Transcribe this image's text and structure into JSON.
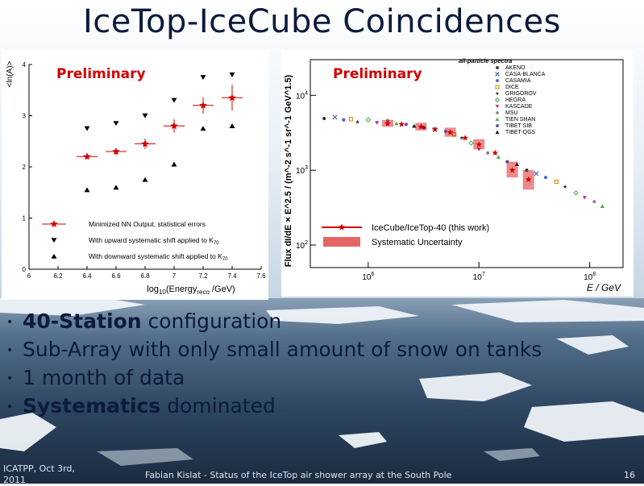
{
  "slide": {
    "title": "IceTop-IceCube Coincidences",
    "bullets": [
      {
        "bold": "40-Station",
        "text": " configuration"
      },
      {
        "bold": "",
        "text": "Sub-Array with only small amount of snow on tanks"
      },
      {
        "bold": "",
        "text": "1 month of data"
      },
      {
        "bold": "Systematics",
        "text": " dominated"
      }
    ],
    "footer": {
      "left": "ICATPP, Oct 3rd, 2011",
      "center": "Fabian Kislat - Status of the IceTop air shower array at the South Pole",
      "page": "16"
    },
    "colors": {
      "title": "#0c1a3c",
      "preliminary": "#d10000",
      "icecube": "#d10000"
    }
  },
  "chart_data": [
    {
      "type": "scatter",
      "preliminary_label": "Preliminary",
      "ylabel": "<ln(A)>",
      "xlabel_parts": [
        "log",
        "10",
        "(Energy",
        "reco",
        " /GeV)"
      ],
      "xlim": [
        6,
        7.6
      ],
      "ylim": [
        0,
        4
      ],
      "xticks": [
        "6",
        "6.2",
        "6.4",
        "6.6",
        "6.8",
        "7",
        "7.2",
        "7.4",
        "7.6"
      ],
      "yticks": [
        "0",
        "1",
        "2",
        "3",
        "4"
      ],
      "series": [
        {
          "name": "Minimized NN Output, statistical errors",
          "marker": "star",
          "color": "#d10000",
          "x": [
            6.4,
            6.6,
            6.8,
            7.0,
            7.2,
            7.4
          ],
          "y": [
            2.2,
            2.3,
            2.45,
            2.8,
            3.2,
            3.35
          ],
          "yerr": [
            0.05,
            0.07,
            0.1,
            0.13,
            0.16,
            0.25
          ]
        },
        {
          "name": "With upward systematic shift applied to K",
          "name_sub": "70",
          "marker": "triangle-down",
          "color": "#000000",
          "x": [
            6.4,
            6.6,
            6.8,
            7.0,
            7.2,
            7.4
          ],
          "y": [
            2.75,
            2.85,
            3.0,
            3.3,
            3.75,
            3.8
          ]
        },
        {
          "name": "With downward systematic shift applied to K",
          "name_sub": "70",
          "marker": "triangle-up",
          "color": "#000000",
          "x": [
            6.4,
            6.6,
            6.8,
            7.0,
            7.2,
            7.4
          ],
          "y": [
            1.55,
            1.6,
            1.75,
            2.05,
            2.75,
            2.8
          ]
        }
      ]
    },
    {
      "type": "scatter",
      "preliminary_label": "Preliminary",
      "legend_title": "all-particle spectra",
      "ylabel": "Flux dI/dE × E^2.5 / (m^-2 s^-1 sr^-1 GeV^1.5)",
      "xlabel": "E / GeV",
      "xscale": "log",
      "yscale": "log",
      "xlim": [
        300000,
        200000000
      ],
      "ylim": [
        50,
        30000
      ],
      "xticks": [
        {
          "value": 1000000,
          "base": "10",
          "exp": "6"
        },
        {
          "value": 10000000,
          "base": "10",
          "exp": "7"
        },
        {
          "value": 100000000,
          "base": "10",
          "exp": "8"
        }
      ],
      "yticks": [
        {
          "value": 100,
          "base": "10",
          "exp": "2"
        },
        {
          "value": 1000,
          "base": "10",
          "exp": "3"
        },
        {
          "value": 10000,
          "base": "10",
          "exp": "4"
        }
      ],
      "experiments": [
        {
          "name": "AKENO",
          "marker": "circle",
          "color": "#333333"
        },
        {
          "name": "CASA-BLANCA",
          "marker": "cross",
          "color": "#4466cc"
        },
        {
          "name": "CASAMIA",
          "marker": "circle",
          "color": "#4466cc"
        },
        {
          "name": "DICE",
          "marker": "square",
          "color": "#cc8800"
        },
        {
          "name": "GRIGOROV",
          "marker": "star",
          "color": "#333333"
        },
        {
          "name": "HEGRA",
          "marker": "diamond",
          "color": "#44aa44"
        },
        {
          "name": "KASCADE",
          "marker": "triangle-down",
          "color": "#aa3399"
        },
        {
          "name": "MSU",
          "marker": "circle",
          "color": "#888888"
        },
        {
          "name": "TIEN SHAN",
          "marker": "triangle-up",
          "color": "#44aa44"
        },
        {
          "name": "TIBET SIB",
          "marker": "circle",
          "color": "#6644aa"
        },
        {
          "name": "TIBET-QGS",
          "marker": "triangle-up",
          "color": "#000000"
        }
      ],
      "series": [
        {
          "name": "IceCube/IceTop-40 (this work)",
          "marker": "star",
          "color": "#d10000",
          "x": [
            1500000,
            2000000,
            3000000,
            4000000,
            5500000,
            7500000,
            10000000,
            14000000,
            20000000,
            28000000
          ],
          "y": [
            4200,
            4100,
            3800,
            3500,
            3200,
            2700,
            2200,
            1700,
            1000,
            750
          ]
        },
        {
          "name": "Systematic Uncertainty",
          "marker": "band",
          "color": "#d10000",
          "x": [
            1500000,
            3000000,
            5500000,
            10000000,
            20000000,
            28000000
          ],
          "y_low": [
            3800,
            3400,
            2800,
            1900,
            800,
            550
          ],
          "y_high": [
            4700,
            4300,
            3700,
            2600,
            1300,
            1000
          ]
        }
      ],
      "other_points": {
        "x": [
          400000,
          500000,
          600000,
          700000,
          800000,
          1000000,
          1200000,
          1500000,
          1800000,
          2200000,
          2600000,
          3200000,
          4000000,
          5000000,
          6000000,
          7000000,
          8500000,
          10000000,
          12000000,
          15000000,
          18000000,
          22000000,
          27000000,
          33000000,
          40000000,
          50000000,
          60000000,
          75000000,
          90000000,
          110000000,
          130000000
        ],
        "y": [
          4900,
          5100,
          4700,
          4800,
          4400,
          4700,
          4300,
          4600,
          4200,
          4100,
          3900,
          3700,
          3500,
          3300,
          3000,
          2700,
          2300,
          1900,
          1700,
          1500,
          1300,
          1200,
          1000,
          900,
          800,
          700,
          600,
          500,
          430,
          380,
          330
        ]
      }
    }
  ]
}
